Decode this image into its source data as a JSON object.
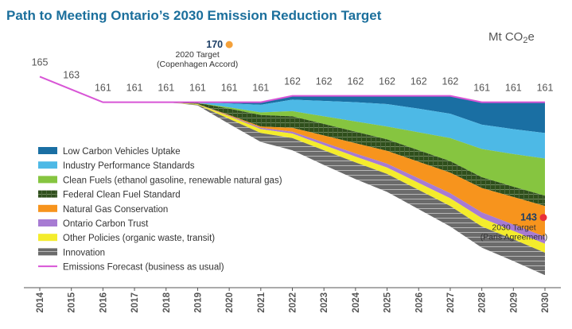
{
  "chart_data": {
    "type": "area",
    "title": "Path to Meeting Ontario’s 2030 Emission Reduction Target",
    "units_prefix": "Mt CO",
    "units_sub": "2",
    "units_suffix": "e",
    "x": [
      2014,
      2015,
      2016,
      2017,
      2018,
      2019,
      2020,
      2021,
      2022,
      2023,
      2024,
      2025,
      2026,
      2027,
      2028,
      2029,
      2030
    ],
    "x_tick_labels": [
      "2014",
      "2015",
      "2016",
      "2017",
      "2018",
      "2019",
      "2020",
      "2021",
      "2022",
      "2023",
      "2024",
      "2025",
      "2026",
      "2027",
      "2028",
      "2029",
      "2030"
    ],
    "forecast_labels": [
      "165",
      "163",
      "161",
      "161",
      "161",
      "161",
      "161",
      "161",
      "162",
      "162",
      "162",
      "162",
      "162",
      "162",
      "161",
      "161",
      "161"
    ],
    "forecast_values": [
      165,
      163,
      161,
      161,
      161,
      161,
      161,
      161,
      162,
      162,
      162,
      162,
      162,
      162,
      161,
      161,
      161
    ],
    "ylim": [
      138,
      172
    ],
    "series": [
      {
        "name": "Low Carbon Vehicles Uptake",
        "color": "#1a6fa3",
        "hatch": false,
        "values": [
          0,
          0,
          0,
          0,
          0,
          0,
          0.2,
          0.4,
          0.6,
          0.8,
          1.0,
          1.3,
          2.0,
          2.8,
          3.5,
          4.2,
          4.8
        ]
      },
      {
        "name": "Industry Performance Standards",
        "color": "#4db9e6",
        "hatch": false,
        "values": [
          0,
          0,
          0,
          0,
          0,
          0.1,
          0.6,
          1.2,
          1.8,
          2.4,
          3.0,
          3.5,
          3.7,
          3.8,
          3.8,
          3.9,
          4.0
        ]
      },
      {
        "name": "Clean Fuels (ethanol gasoline, renewable natural gas)",
        "color": "#86c540",
        "hatch": false,
        "values": [
          0,
          0,
          0,
          0,
          0,
          0,
          0.2,
          0.4,
          0.8,
          1.2,
          1.6,
          2.0,
          2.8,
          3.6,
          4.4,
          5.1,
          5.8
        ]
      },
      {
        "name": "Federal Clean Fuel Standard",
        "color": "#2f4f1c",
        "hatch": true,
        "values": [
          0,
          0,
          0,
          0,
          0,
          0.2,
          1.0,
          1.8,
          1.8,
          1.8,
          1.8,
          1.8,
          1.8,
          1.8,
          1.7,
          1.6,
          1.6
        ]
      },
      {
        "name": "Natural Gas Conservation",
        "color": "#f7941d",
        "hatch": false,
        "values": [
          0,
          0,
          0,
          0,
          0,
          0,
          0.1,
          0.2,
          0.6,
          1.1,
          1.6,
          2.0,
          2.6,
          3.2,
          3.8,
          4.3,
          4.8
        ]
      },
      {
        "name": "Ontario Carbon Trust",
        "color": "#a77bd3",
        "hatch": false,
        "values": [
          0,
          0,
          0,
          0,
          0,
          0,
          0.1,
          0.2,
          0.3,
          0.4,
          0.5,
          0.6,
          0.7,
          0.8,
          0.9,
          1.0,
          1.1
        ]
      },
      {
        "name": "Other Policies (organic waste, transit)",
        "color": "#f4ec2c",
        "hatch": false,
        "values": [
          0,
          0,
          0,
          0,
          0,
          0.1,
          0.4,
          0.6,
          0.7,
          0.8,
          0.9,
          1.0,
          1.1,
          1.2,
          1.3,
          1.3,
          1.4
        ]
      },
      {
        "name": "Innovation",
        "color": "#6b6b6b",
        "hatch": true,
        "values": [
          0,
          0,
          0,
          0,
          0,
          0.1,
          0.8,
          1.4,
          1.9,
          2.3,
          2.6,
          2.8,
          3.0,
          3.2,
          3.3,
          3.4,
          3.5
        ]
      }
    ],
    "forecast_series": {
      "name": "Emissions Forecast (business as usual)",
      "color": "#d855d6"
    },
    "targets": [
      {
        "value": "170",
        "year": 2020,
        "y": 170,
        "label1": "2020 Target",
        "label2": "(Copenhagen Accord)",
        "color": "#f4a13a"
      },
      {
        "value": "143",
        "year": 2030,
        "y": 143,
        "label1": "2030 Target",
        "label2": "(Paris Agreement)",
        "color": "#e8303a"
      }
    ],
    "legend_position": "left"
  }
}
